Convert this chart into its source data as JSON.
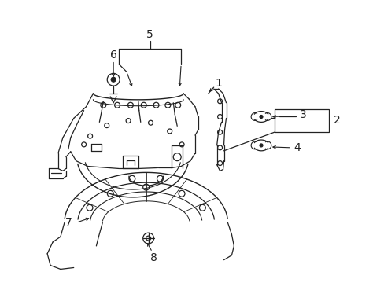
{
  "background_color": "#ffffff",
  "line_color": "#222222",
  "figsize": [
    4.89,
    3.6
  ],
  "dpi": 100,
  "label_fontsize": 10
}
